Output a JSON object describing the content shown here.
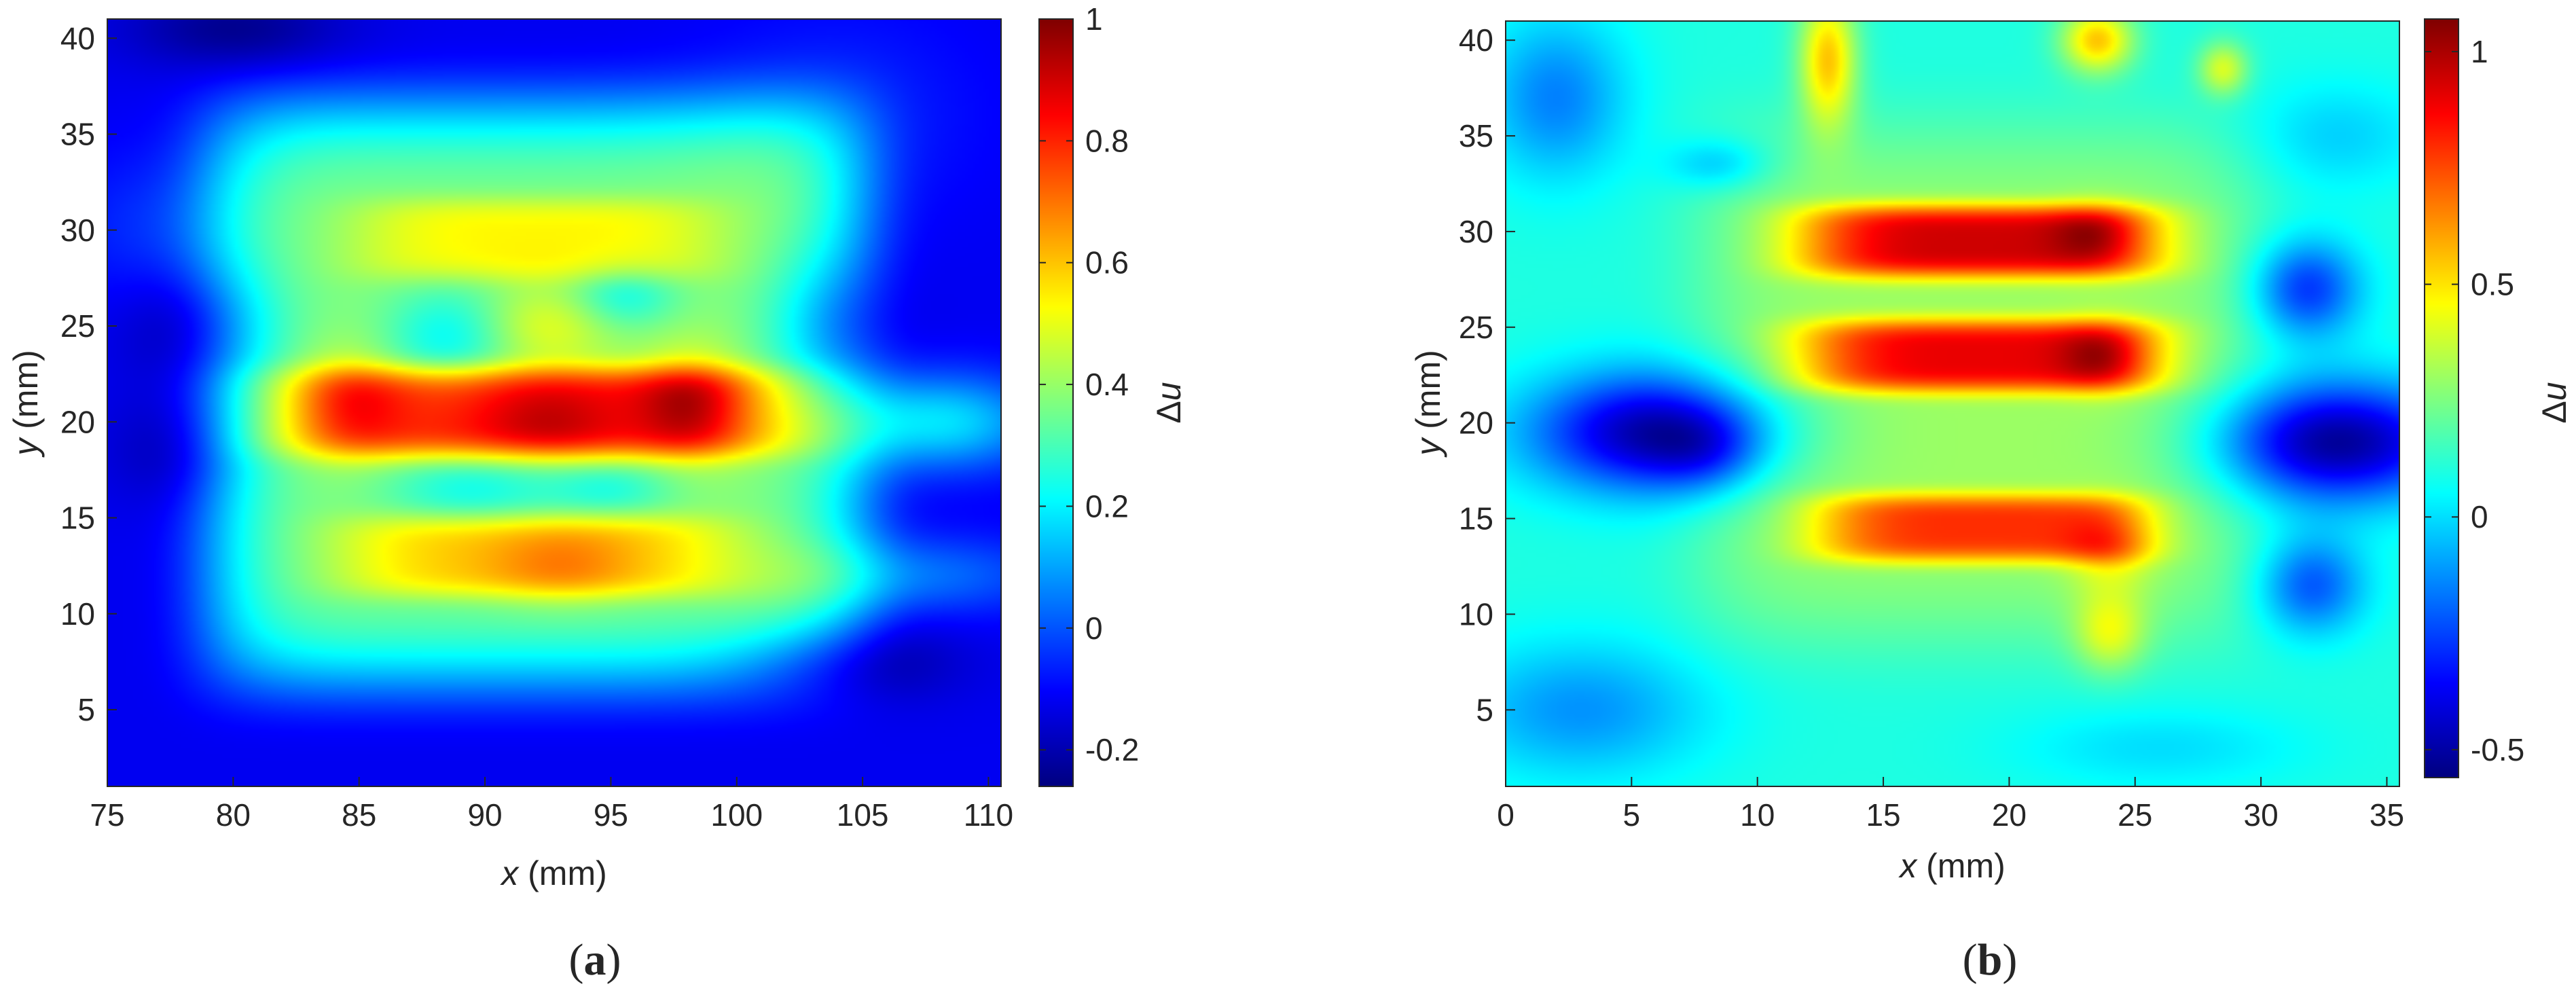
{
  "chart_data": [
    {
      "type": "heatmap",
      "panel_label": "a",
      "xlabel": {
        "var": "x",
        "unit": " (mm)"
      },
      "ylabel": {
        "var": "y",
        "unit": " (mm)"
      },
      "colorbar_label": {
        "prefix": "Δ",
        "var": "u"
      },
      "xlim": [
        75,
        110.5
      ],
      "ylim": [
        1,
        41
      ],
      "x_ticks": [
        75,
        80,
        85,
        90,
        95,
        100,
        105,
        110
      ],
      "y_ticks": [
        5,
        10,
        15,
        20,
        25,
        30,
        35,
        40
      ],
      "clim": [
        -0.26,
        1
      ],
      "colorbar_ticks": [
        {
          "value": 1,
          "label": "1"
        },
        {
          "value": 0.8,
          "label": "0.8"
        },
        {
          "value": 0.6,
          "label": "0.6"
        },
        {
          "value": 0.4,
          "label": "0.4"
        },
        {
          "value": 0.2,
          "label": "0.2"
        },
        {
          "value": 0,
          "label": "0"
        },
        {
          "value": -0.2,
          "label": "-0.2"
        }
      ],
      "colormap": "jet",
      "background": -0.12,
      "features": [
        {
          "x": 92,
          "y": 21.5,
          "sx": 12,
          "sy": 14,
          "amp": 0.5,
          "shape": 8
        },
        {
          "x": 92,
          "y": 20.5,
          "sx": 8.5,
          "sy": 2.0,
          "amp": 0.42,
          "shape": 4
        },
        {
          "x": 84.5,
          "y": 21,
          "sx": 1.5,
          "sy": 2.0,
          "amp": 0.15
        },
        {
          "x": 98.2,
          "y": 21,
          "sx": 1.5,
          "sy": 2.0,
          "amp": 0.2
        },
        {
          "x": 92.5,
          "y": 20,
          "sx": 2.0,
          "sy": 1.5,
          "amp": 0.12
        },
        {
          "x": 92,
          "y": 13,
          "sx": 6.5,
          "sy": 1.8,
          "amp": 0.22,
          "shape": 4
        },
        {
          "x": 93,
          "y": 12.5,
          "sx": 2.0,
          "sy": 1.5,
          "amp": 0.1
        },
        {
          "x": 92,
          "y": 29.5,
          "sx": 6.0,
          "sy": 1.8,
          "amp": 0.16,
          "shape": 4
        },
        {
          "x": 92.5,
          "y": 25,
          "sx": 1.8,
          "sy": 1.5,
          "amp": 0.12
        },
        {
          "x": 88.5,
          "y": 24.5,
          "sx": 1.8,
          "sy": 1.8,
          "amp": -0.16
        },
        {
          "x": 95.5,
          "y": 26.5,
          "sx": 1.5,
          "sy": 1.2,
          "amp": -0.14
        },
        {
          "x": 89.5,
          "y": 16.5,
          "sx": 2.5,
          "sy": 1.2,
          "amp": -0.14
        },
        {
          "x": 95,
          "y": 16.5,
          "sx": 1.8,
          "sy": 1.0,
          "amp": -0.12
        },
        {
          "x": 79,
          "y": 25,
          "sx": 2.2,
          "sy": 2.2,
          "amp": -0.12
        },
        {
          "x": 78,
          "y": 18.5,
          "sx": 2.0,
          "sy": 2.0,
          "amp": -0.08
        },
        {
          "x": 80,
          "y": 40.5,
          "sx": 3.0,
          "sy": 1.5,
          "amp": -0.12
        },
        {
          "x": 103.5,
          "y": 25,
          "sx": 1.8,
          "sy": 2.5,
          "amp": -0.14
        },
        {
          "x": 104,
          "y": 7.5,
          "sx": 3.0,
          "sy": 1.5,
          "amp": -0.13
        },
        {
          "x": 108,
          "y": 20,
          "sx": 3.0,
          "sy": 1.8,
          "amp": 0.3
        },
        {
          "x": 107,
          "y": 12,
          "sx": 4.0,
          "sy": 1.5,
          "amp": 0.16
        },
        {
          "x": 77,
          "y": 30,
          "sx": 2.5,
          "sy": 3.0,
          "amp": 0.08
        },
        {
          "x": 104,
          "y": 36,
          "sx": 4.0,
          "sy": 4.0,
          "amp": 0.06
        }
      ]
    },
    {
      "type": "heatmap",
      "panel_label": "b",
      "xlabel": {
        "var": "x",
        "unit": " (mm)"
      },
      "ylabel": {
        "var": "y",
        "unit": " (mm)"
      },
      "colorbar_label": {
        "prefix": "Δ",
        "var": "u"
      },
      "xlim": [
        0,
        35.5
      ],
      "ylim": [
        1,
        41
      ],
      "x_ticks": [
        0,
        5,
        10,
        15,
        20,
        25,
        30,
        35
      ],
      "y_ticks": [
        5,
        10,
        15,
        20,
        25,
        30,
        35,
        40
      ],
      "clim": [
        -0.56,
        1.07
      ],
      "colorbar_ticks": [
        {
          "value": 1,
          "label": "1"
        },
        {
          "value": 0.5,
          "label": "0.5"
        },
        {
          "value": 0,
          "label": "0"
        },
        {
          "value": -0.5,
          "label": "-0.5"
        }
      ],
      "colormap": "jet",
      "background": 0.1,
      "features": [
        {
          "x": 18.8,
          "y": 22,
          "sx": 10,
          "sy": 12,
          "amp": 0.2,
          "shape": 6
        },
        {
          "x": 18.8,
          "y": 29.5,
          "sx": 6.0,
          "sy": 1.6,
          "amp": 0.65,
          "shape": 4
        },
        {
          "x": 18.8,
          "y": 23.5,
          "sx": 6.0,
          "sy": 1.6,
          "amp": 0.6,
          "shape": 4
        },
        {
          "x": 18.8,
          "y": 14.5,
          "sx": 5.5,
          "sy": 1.5,
          "amp": 0.5,
          "shape": 4
        },
        {
          "x": 23.5,
          "y": 29.8,
          "sx": 1.2,
          "sy": 1.1,
          "amp": 0.2
        },
        {
          "x": 23.8,
          "y": 23.5,
          "sx": 1.2,
          "sy": 1.2,
          "amp": 0.25
        },
        {
          "x": 24,
          "y": 13.5,
          "sx": 1.2,
          "sy": 1.5,
          "amp": 0.2
        },
        {
          "x": 24,
          "y": 9,
          "sx": 1.0,
          "sy": 1.5,
          "amp": 0.25
        },
        {
          "x": 12.8,
          "y": 39,
          "sx": 0.8,
          "sy": 2.5,
          "amp": 0.45
        },
        {
          "x": 23.5,
          "y": 40,
          "sx": 1.0,
          "sy": 1.2,
          "amp": 0.45
        },
        {
          "x": 28.5,
          "y": 38.5,
          "sx": 0.7,
          "sy": 1.0,
          "amp": 0.3
        },
        {
          "x": 6,
          "y": 19.5,
          "sx": 3.5,
          "sy": 2.2,
          "amp": -0.6
        },
        {
          "x": 8,
          "y": 18.5,
          "sx": 1.5,
          "sy": 1.5,
          "amp": -0.15
        },
        {
          "x": 33,
          "y": 19,
          "sx": 3.5,
          "sy": 2.2,
          "amp": -0.62
        },
        {
          "x": 31.8,
          "y": 27,
          "sx": 1.5,
          "sy": 1.8,
          "amp": -0.38
        },
        {
          "x": 32,
          "y": 11.5,
          "sx": 1.5,
          "sy": 1.8,
          "amp": -0.32
        },
        {
          "x": 2,
          "y": 37,
          "sx": 2.0,
          "sy": 3.0,
          "amp": -0.25
        },
        {
          "x": 8.5,
          "y": 33.5,
          "sx": 1.5,
          "sy": 1.0,
          "amp": -0.18
        },
        {
          "x": 3,
          "y": 5,
          "sx": 3.5,
          "sy": 2.5,
          "amp": -0.22
        },
        {
          "x": 33,
          "y": 35,
          "sx": 2.5,
          "sy": 2.0,
          "amp": -0.12
        },
        {
          "x": 26,
          "y": 3,
          "sx": 4.0,
          "sy": 1.5,
          "amp": -0.1
        }
      ]
    }
  ]
}
